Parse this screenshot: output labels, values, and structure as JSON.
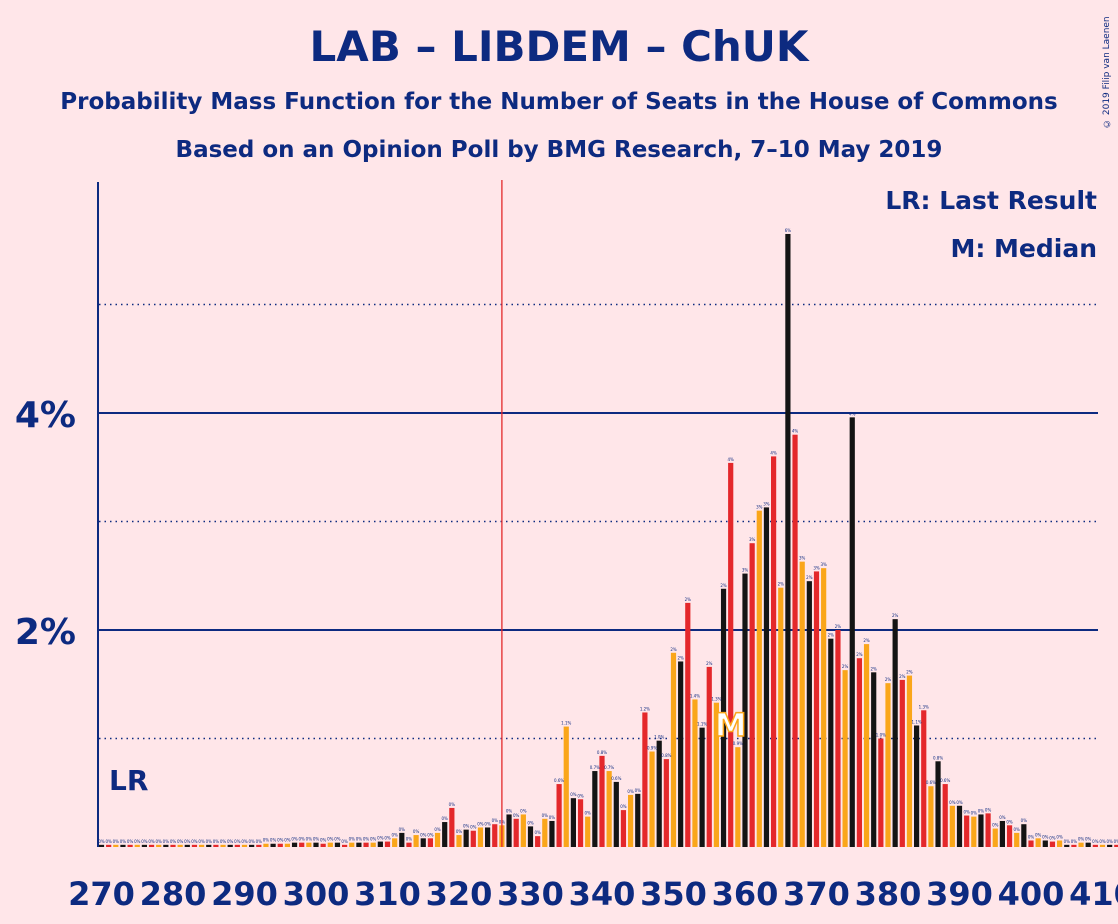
{
  "title": "LAB – LIBDEM – ChUK",
  "subtitle": "Probability Mass Function for the Number of Seats in the House of Commons",
  "source_line": "Based on an Opinion Poll by BMG Research, 7–10 May 2019",
  "copyright": "© 2019 Filip van Laenen",
  "legend": {
    "last_result": "LR: Last Result",
    "median": "M: Median"
  },
  "markers": {
    "last_result_label": "LR",
    "median_label": "M"
  },
  "colors": {
    "background": "#FFE6E9",
    "text": "#0D2A80",
    "bar_red": "#E4282B",
    "bar_orange": "#FAA61A",
    "bar_dark": "#141414",
    "last_result_line": "#E4282B"
  },
  "chart_data": {
    "type": "bar",
    "x_start": 270,
    "x_step": 1,
    "x_ticks": [
      "270",
      "280",
      "290",
      "300",
      "310",
      "320",
      "330",
      "340",
      "350",
      "360",
      "370",
      "380",
      "390",
      "400",
      "410"
    ],
    "y_ticks": [
      "2%",
      "4%"
    ],
    "ylim": [
      0,
      6.1
    ],
    "last_result": 326,
    "median": 358,
    "values": [
      0.02,
      0.02,
      0.02,
      0.02,
      0.02,
      0.02,
      0.02,
      0.02,
      0.02,
      0.02,
      0.02,
      0.02,
      0.02,
      0.02,
      0.02,
      0.02,
      0.02,
      0.02,
      0.02,
      0.02,
      0.02,
      0.02,
      0.02,
      0.03,
      0.03,
      0.03,
      0.03,
      0.04,
      0.04,
      0.04,
      0.04,
      0.03,
      0.04,
      0.04,
      0.02,
      0.04,
      0.04,
      0.04,
      0.04,
      0.05,
      0.05,
      0.08,
      0.13,
      0.04,
      0.11,
      0.08,
      0.08,
      0.13,
      0.23,
      0.36,
      0.11,
      0.16,
      0.15,
      0.18,
      0.18,
      0.21,
      0.2,
      0.3,
      0.26,
      0.3,
      0.19,
      0.1,
      0.26,
      0.24,
      0.58,
      1.11,
      0.45,
      0.44,
      0.28,
      0.7,
      0.84,
      0.7,
      0.6,
      0.34,
      0.48,
      0.49,
      1.24,
      0.88,
      0.98,
      0.81,
      1.79,
      1.71,
      2.25,
      1.36,
      1.1,
      1.66,
      1.33,
      2.38,
      3.54,
      0.92,
      2.52,
      2.8,
      3.1,
      3.13,
      3.6,
      2.39,
      5.65,
      3.8,
      2.63,
      2.45,
      2.54,
      2.57,
      1.92,
      2.0,
      1.63,
      3.96,
      1.74,
      1.87,
      1.61,
      1.0,
      1.51,
      2.1,
      1.54,
      1.58,
      1.12,
      1.26,
      0.56,
      0.79,
      0.58,
      0.38,
      0.38,
      0.29,
      0.28,
      0.3,
      0.31,
      0.17,
      0.24,
      0.2,
      0.13,
      0.21,
      0.06,
      0.08,
      0.06,
      0.05,
      0.06,
      0.02,
      0.02,
      0.04,
      0.04,
      0.02,
      0.02,
      0.02,
      0.02,
      0.02,
      0.02,
      0.02,
      0.02,
      0.02,
      0.02,
      0.02,
      0.02
    ]
  }
}
